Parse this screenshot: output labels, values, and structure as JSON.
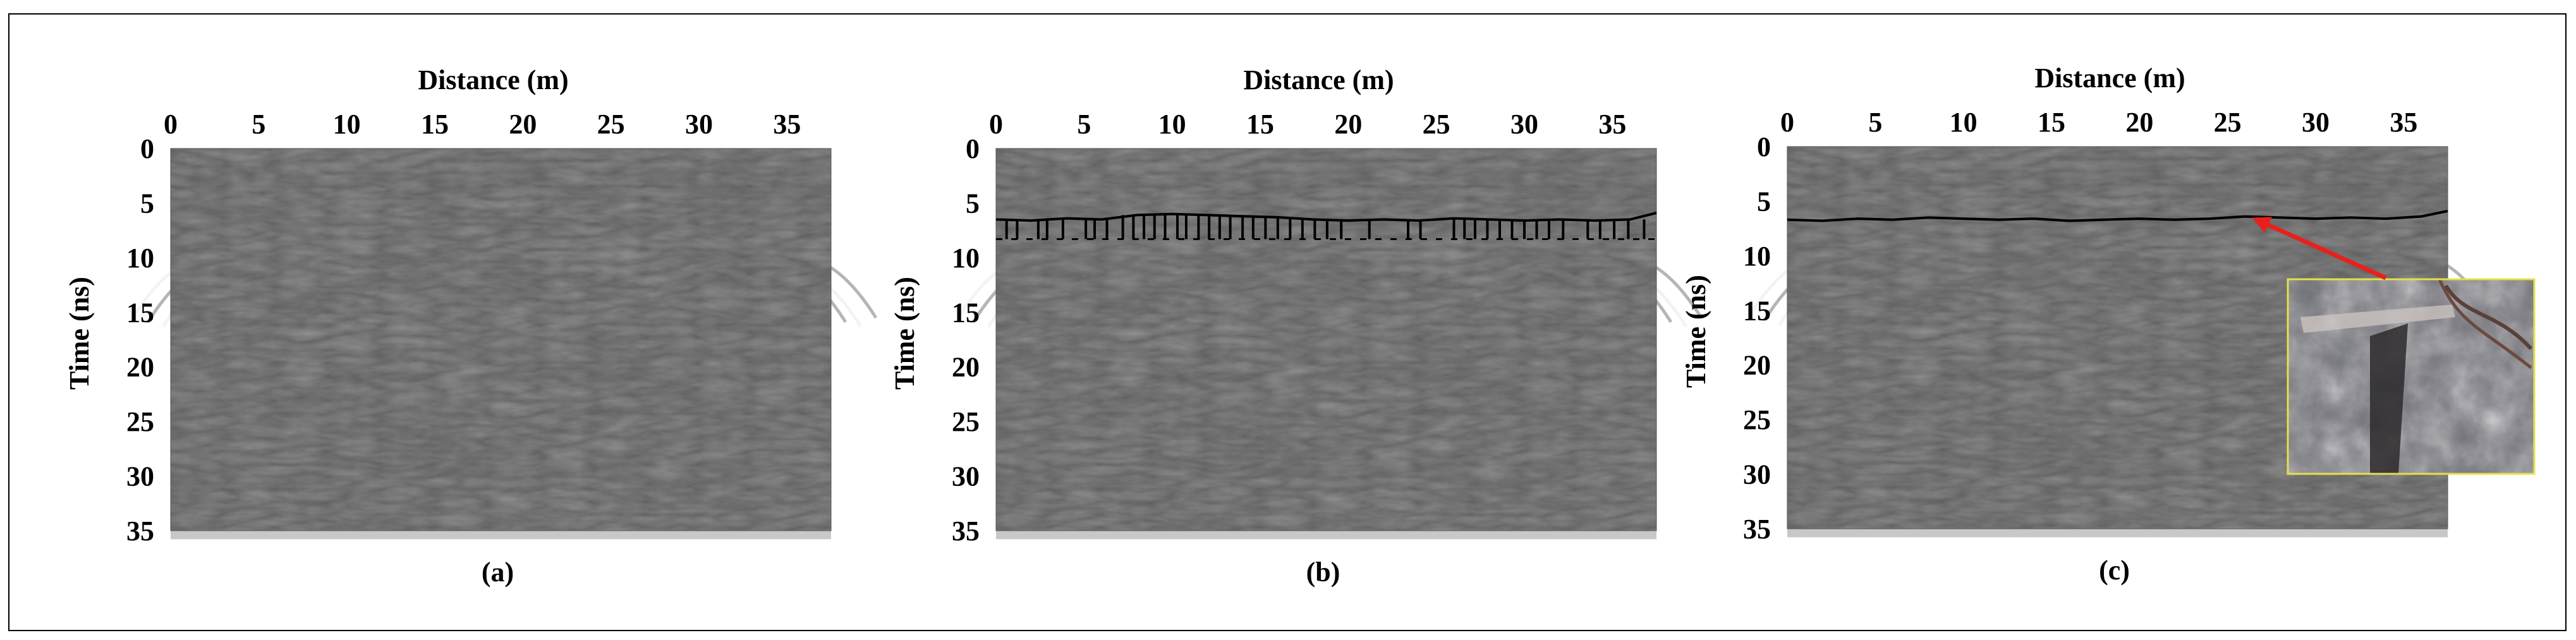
{
  "figure": {
    "frame_color": "#000000",
    "arrow_color": "#e8201c",
    "photo_border_color": "#e7e04a"
  },
  "chart_data": [
    {
      "type": "heatmap",
      "panel_label": "(a)",
      "xlabel": "Distance (m)",
      "ylabel": "Time (ns)",
      "xlim": [
        0,
        37.5
      ],
      "ylim": [
        0,
        35
      ],
      "y_inverted": true,
      "x_axis_position": "top",
      "x_ticks": [
        0,
        5,
        10,
        15,
        20,
        25,
        30,
        35
      ],
      "y_ticks": [
        0,
        5,
        10,
        15,
        20,
        25,
        30,
        35
      ],
      "colormap": "grayscale",
      "overlay": "none"
    },
    {
      "type": "heatmap",
      "panel_label": "(b)",
      "xlabel": "Distance (m)",
      "ylabel": "Time (ns)",
      "xlim": [
        0,
        37.5
      ],
      "ylim": [
        0,
        35
      ],
      "y_inverted": true,
      "x_axis_position": "top",
      "x_ticks": [
        0,
        5,
        10,
        15,
        20,
        25,
        30,
        35
      ],
      "y_ticks": [
        0,
        5,
        10,
        15,
        20,
        25,
        30,
        35
      ],
      "colormap": "grayscale",
      "overlay": "noisy picked interface",
      "pick_line": {
        "x": [
          0,
          2,
          4,
          6,
          8,
          10,
          12,
          14,
          16,
          18,
          20,
          22,
          24,
          26,
          28,
          30,
          32,
          34,
          36,
          37.5
        ],
        "y": [
          6.5,
          6.6,
          6.4,
          6.5,
          6.1,
          6.0,
          6.1,
          6.2,
          6.3,
          6.5,
          6.6,
          6.5,
          6.6,
          6.4,
          6.5,
          6.6,
          6.5,
          6.6,
          6.5,
          5.9
        ],
        "spike_bottom_ns": 8.3,
        "spike_x": [
          0.6,
          1.2,
          2.4,
          2.9,
          3.8,
          5.1,
          5.6,
          6.3,
          7.2,
          7.8,
          8.4,
          9.0,
          9.6,
          10.3,
          10.8,
          11.5,
          12.1,
          12.7,
          13.3,
          14.0,
          14.6,
          15.3,
          16.0,
          16.7,
          17.4,
          18.1,
          18.8,
          19.6,
          21.2,
          23.4,
          24.1,
          26.0,
          26.6,
          27.2,
          27.9,
          28.6,
          29.3,
          30.0,
          30.7,
          31.4,
          32.2,
          33.6,
          34.3,
          35.1,
          35.9,
          36.8
        ]
      }
    },
    {
      "type": "heatmap",
      "panel_label": "(c)",
      "xlabel": "Distance (m)",
      "ylabel": "Time (ns)",
      "xlim": [
        0,
        37.5
      ],
      "ylim": [
        0,
        35
      ],
      "y_inverted": true,
      "x_axis_position": "top",
      "x_ticks": [
        0,
        5,
        10,
        15,
        20,
        25,
        30,
        35
      ],
      "y_ticks": [
        0,
        5,
        10,
        15,
        20,
        25,
        30,
        35
      ],
      "colormap": "grayscale",
      "overlay": "smoothed picked interface with photo inset",
      "pick_line": {
        "x": [
          0,
          2,
          4,
          6,
          8,
          10,
          12,
          14,
          16,
          18,
          20,
          22,
          24,
          26,
          28,
          30,
          32,
          34,
          36,
          37.5
        ],
        "y": [
          6.7,
          6.8,
          6.6,
          6.7,
          6.5,
          6.6,
          6.7,
          6.6,
          6.8,
          6.7,
          6.6,
          6.7,
          6.6,
          6.4,
          6.5,
          6.6,
          6.5,
          6.6,
          6.4,
          5.9
        ]
      },
      "arrow_target": {
        "x": 26.3,
        "y": 6.3
      }
    }
  ]
}
